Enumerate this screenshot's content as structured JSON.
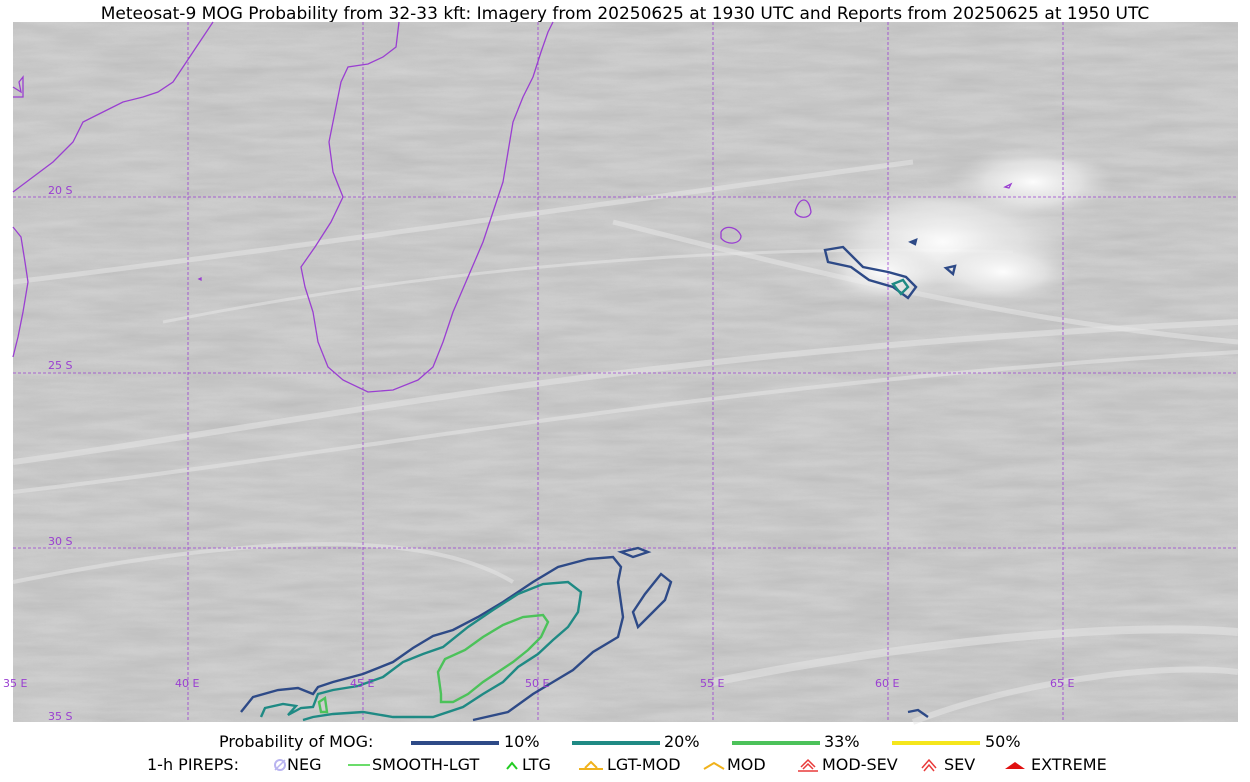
{
  "title": "Meteosat-9 MOG Probability from 32-33 kft: Imagery from 20250625 at 1930 UTC and Reports from 20250625 at 1950 UTC",
  "map": {
    "lat_labels": [
      "20 S",
      "25 S",
      "30 S",
      "35 S"
    ],
    "lon_labels": [
      "35 E",
      "40 E",
      "45 E",
      "50 E",
      "55 E",
      "60 E",
      "65 E"
    ],
    "colors": {
      "coastline": "#9a3fd1",
      "gridline": "#9a3fd1",
      "background": "#c8c8c8"
    }
  },
  "legend": {
    "probability": {
      "label": "Probability of MOG:",
      "items": [
        {
          "label": "10%",
          "color": "#2e4a87"
        },
        {
          "label": "20%",
          "color": "#1f8a84"
        },
        {
          "label": "33%",
          "color": "#4cc25a"
        },
        {
          "label": "50%",
          "color": "#f5e61c"
        }
      ]
    },
    "pireps": {
      "label": "1-h PIREPS:",
      "items": [
        {
          "label": "NEG",
          "color": "#b9b4f0",
          "icon": "neg-icon"
        },
        {
          "label": "SMOOTH-LGT",
          "color": "#3ad13a",
          "icon": "line-icon"
        },
        {
          "label": "LTG",
          "color": "#22cc22",
          "icon": "caret-icon"
        },
        {
          "label": "LGT-MOD",
          "color": "#f0b21c",
          "icon": "caret-bar-icon"
        },
        {
          "label": "MOD",
          "color": "#f0b21c",
          "icon": "caret-icon"
        },
        {
          "label": "MOD-SEV",
          "color": "#e83a3a",
          "icon": "double-caret-bar-icon"
        },
        {
          "label": "SEV",
          "color": "#e83a3a",
          "icon": "double-caret-icon"
        },
        {
          "label": "EXTREME",
          "color": "#e01010",
          "icon": "filled-caret-icon"
        }
      ]
    }
  }
}
